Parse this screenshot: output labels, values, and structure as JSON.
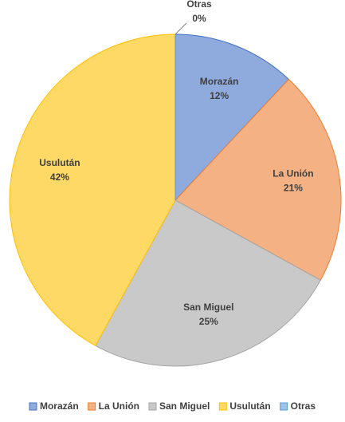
{
  "chart_data": {
    "type": "pie",
    "categories": [
      "Morazán",
      "La Unión",
      "San Miguel",
      "Usulután",
      "Otras"
    ],
    "values": [
      12,
      21,
      25,
      42,
      0
    ],
    "value_labels": [
      "12%",
      "21%",
      "25%",
      "42%",
      "0%"
    ],
    "colors": [
      "#8faadc",
      "#f4b183",
      "#c9c9c9",
      "#ffd966",
      "#9dc3e6"
    ],
    "edge_colors": [
      "#4472c4",
      "#ed7d31",
      "#a5a5a5",
      "#ffc000",
      "#5b9bd5"
    ],
    "legend": "bottom"
  }
}
